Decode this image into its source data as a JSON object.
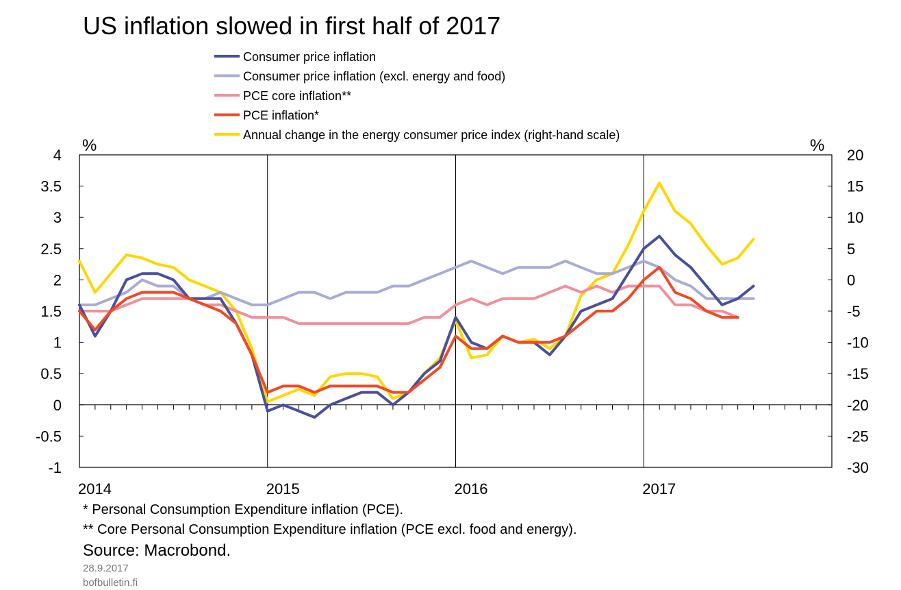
{
  "title": "US inflation slowed in first half of 2017",
  "footnotes": [
    "* Personal Consumption Expenditure inflation (PCE).",
    "** Core Personal Consumption Expenditure inflation (PCE excl. food and energy)."
  ],
  "source": "Source: Macrobond.",
  "date": "28.9.2017",
  "site": "bofbulletin.fi",
  "chart_data": {
    "type": "line",
    "left_unit": "%",
    "right_unit": "%",
    "ylim_left": [
      -1,
      4
    ],
    "ylim_right": [
      -30,
      20
    ],
    "yticks_left": [
      "4",
      "3.5",
      "3",
      "2.5",
      "2",
      "1.5",
      "1",
      "0.5",
      "0",
      "-0.5",
      "-1"
    ],
    "yticks_right": [
      "20",
      "15",
      "10",
      "5",
      "0",
      "-5",
      "-10",
      "-15",
      "-20",
      "-25",
      "-30"
    ],
    "x_start": "2014-01",
    "x_end": "2017-12",
    "x_tick_labels": [
      "2014",
      "2015",
      "2016",
      "2017"
    ],
    "grid": "vertical lines at year starts",
    "legend_position": "top",
    "series": [
      {
        "name": "Consumer price inflation",
        "color": "#4a4f9e",
        "axis": "left",
        "x": [
          "2014-01",
          "2014-02",
          "2014-03",
          "2014-04",
          "2014-05",
          "2014-06",
          "2014-07",
          "2014-08",
          "2014-09",
          "2014-10",
          "2014-11",
          "2014-12",
          "2015-01",
          "2015-02",
          "2015-03",
          "2015-04",
          "2015-05",
          "2015-06",
          "2015-07",
          "2015-08",
          "2015-09",
          "2015-10",
          "2015-11",
          "2015-12",
          "2016-01",
          "2016-02",
          "2016-03",
          "2016-04",
          "2016-05",
          "2016-06",
          "2016-07",
          "2016-08",
          "2016-09",
          "2016-10",
          "2016-11",
          "2016-12",
          "2017-01",
          "2017-02",
          "2017-03",
          "2017-04",
          "2017-05",
          "2017-06",
          "2017-07",
          "2017-08"
        ],
        "values": [
          1.6,
          1.1,
          1.5,
          2.0,
          2.1,
          2.1,
          2.0,
          1.7,
          1.7,
          1.7,
          1.3,
          0.8,
          -0.1,
          0.0,
          -0.1,
          -0.2,
          0.0,
          0.1,
          0.2,
          0.2,
          0.0,
          0.2,
          0.5,
          0.7,
          1.4,
          1.0,
          0.9,
          1.1,
          1.0,
          1.0,
          0.8,
          1.1,
          1.5,
          1.6,
          1.7,
          2.1,
          2.5,
          2.7,
          2.4,
          2.2,
          1.9,
          1.6,
          1.7,
          1.9
        ]
      },
      {
        "name": "Consumer price inflation (excl. energy and food)",
        "color": "#a9acd6",
        "axis": "left",
        "x": [
          "2014-01",
          "2014-02",
          "2014-03",
          "2014-04",
          "2014-05",
          "2014-06",
          "2014-07",
          "2014-08",
          "2014-09",
          "2014-10",
          "2014-11",
          "2014-12",
          "2015-01",
          "2015-02",
          "2015-03",
          "2015-04",
          "2015-05",
          "2015-06",
          "2015-07",
          "2015-08",
          "2015-09",
          "2015-10",
          "2015-11",
          "2015-12",
          "2016-01",
          "2016-02",
          "2016-03",
          "2016-04",
          "2016-05",
          "2016-06",
          "2016-07",
          "2016-08",
          "2016-09",
          "2016-10",
          "2016-11",
          "2016-12",
          "2017-01",
          "2017-02",
          "2017-03",
          "2017-04",
          "2017-05",
          "2017-06",
          "2017-07",
          "2017-08"
        ],
        "values": [
          1.6,
          1.6,
          1.7,
          1.8,
          2.0,
          1.9,
          1.9,
          1.7,
          1.7,
          1.8,
          1.7,
          1.6,
          1.6,
          1.7,
          1.8,
          1.8,
          1.7,
          1.8,
          1.8,
          1.8,
          1.9,
          1.9,
          2.0,
          2.1,
          2.2,
          2.3,
          2.2,
          2.1,
          2.2,
          2.2,
          2.2,
          2.3,
          2.2,
          2.1,
          2.1,
          2.2,
          2.3,
          2.2,
          2.0,
          1.9,
          1.7,
          1.7,
          1.7,
          1.7
        ]
      },
      {
        "name": "PCE core inflation**",
        "color": "#f0909a",
        "axis": "left",
        "x": [
          "2014-01",
          "2014-02",
          "2014-03",
          "2014-04",
          "2014-05",
          "2014-06",
          "2014-07",
          "2014-08",
          "2014-09",
          "2014-10",
          "2014-11",
          "2014-12",
          "2015-01",
          "2015-02",
          "2015-03",
          "2015-04",
          "2015-05",
          "2015-06",
          "2015-07",
          "2015-08",
          "2015-09",
          "2015-10",
          "2015-11",
          "2015-12",
          "2016-01",
          "2016-02",
          "2016-03",
          "2016-04",
          "2016-05",
          "2016-06",
          "2016-07",
          "2016-08",
          "2016-09",
          "2016-10",
          "2016-11",
          "2016-12",
          "2017-01",
          "2017-02",
          "2017-03",
          "2017-04",
          "2017-05",
          "2017-06",
          "2017-07"
        ],
        "values": [
          1.5,
          1.5,
          1.5,
          1.6,
          1.7,
          1.7,
          1.7,
          1.7,
          1.6,
          1.6,
          1.5,
          1.4,
          1.4,
          1.4,
          1.3,
          1.3,
          1.3,
          1.3,
          1.3,
          1.3,
          1.3,
          1.3,
          1.4,
          1.4,
          1.6,
          1.7,
          1.6,
          1.7,
          1.7,
          1.7,
          1.8,
          1.9,
          1.8,
          1.9,
          1.8,
          1.9,
          1.9,
          1.9,
          1.6,
          1.6,
          1.5,
          1.5,
          1.4
        ]
      },
      {
        "name": "PCE inflation*",
        "color": "#f04a25",
        "axis": "left",
        "x": [
          "2014-01",
          "2014-02",
          "2014-03",
          "2014-04",
          "2014-05",
          "2014-06",
          "2014-07",
          "2014-08",
          "2014-09",
          "2014-10",
          "2014-11",
          "2014-12",
          "2015-01",
          "2015-02",
          "2015-03",
          "2015-04",
          "2015-05",
          "2015-06",
          "2015-07",
          "2015-08",
          "2015-09",
          "2015-10",
          "2015-11",
          "2015-12",
          "2016-01",
          "2016-02",
          "2016-03",
          "2016-04",
          "2016-05",
          "2016-06",
          "2016-07",
          "2016-08",
          "2016-09",
          "2016-10",
          "2016-11",
          "2016-12",
          "2017-01",
          "2017-02",
          "2017-03",
          "2017-04",
          "2017-05",
          "2017-06",
          "2017-07"
        ],
        "values": [
          1.5,
          1.2,
          1.5,
          1.7,
          1.8,
          1.8,
          1.8,
          1.7,
          1.6,
          1.5,
          1.3,
          0.8,
          0.2,
          0.3,
          0.3,
          0.2,
          0.3,
          0.3,
          0.3,
          0.3,
          0.2,
          0.2,
          0.4,
          0.6,
          1.1,
          0.9,
          0.9,
          1.1,
          1.0,
          1.0,
          1.0,
          1.1,
          1.3,
          1.5,
          1.5,
          1.7,
          2.0,
          2.2,
          1.8,
          1.7,
          1.5,
          1.4,
          1.4
        ]
      },
      {
        "name": "Annual change in the energy consumer price index (right-hand scale)",
        "color": "#ffd700",
        "axis": "right",
        "x": [
          "2014-01",
          "2014-02",
          "2014-03",
          "2014-04",
          "2014-05",
          "2014-06",
          "2014-07",
          "2014-08",
          "2014-09",
          "2014-10",
          "2014-11",
          "2014-12",
          "2015-01",
          "2015-02",
          "2015-03",
          "2015-04",
          "2015-05",
          "2015-06",
          "2015-07",
          "2015-08",
          "2015-09",
          "2015-10",
          "2015-11",
          "2015-12",
          "2016-01",
          "2016-02",
          "2016-03",
          "2016-04",
          "2016-05",
          "2016-06",
          "2016-07",
          "2016-08",
          "2016-09",
          "2016-10",
          "2016-11",
          "2016-12",
          "2017-01",
          "2017-02",
          "2017-03",
          "2017-04",
          "2017-05",
          "2017-06",
          "2017-07",
          "2017-08"
        ],
        "values": [
          3.0,
          -2.0,
          1.0,
          4.0,
          3.5,
          2.5,
          2.0,
          0.0,
          -1.0,
          -2.0,
          -5.0,
          -11.0,
          -19.5,
          -18.5,
          -17.5,
          -18.5,
          -15.5,
          -15.0,
          -15.0,
          -15.5,
          -19.0,
          -18.0,
          -15.0,
          -12.5,
          -6.5,
          -12.5,
          -12.0,
          -9.0,
          -10.0,
          -9.5,
          -11.0,
          -9.0,
          -2.5,
          0.0,
          1.0,
          5.5,
          11.0,
          15.5,
          11.0,
          9.0,
          5.5,
          2.5,
          3.5,
          6.5
        ]
      }
    ]
  }
}
